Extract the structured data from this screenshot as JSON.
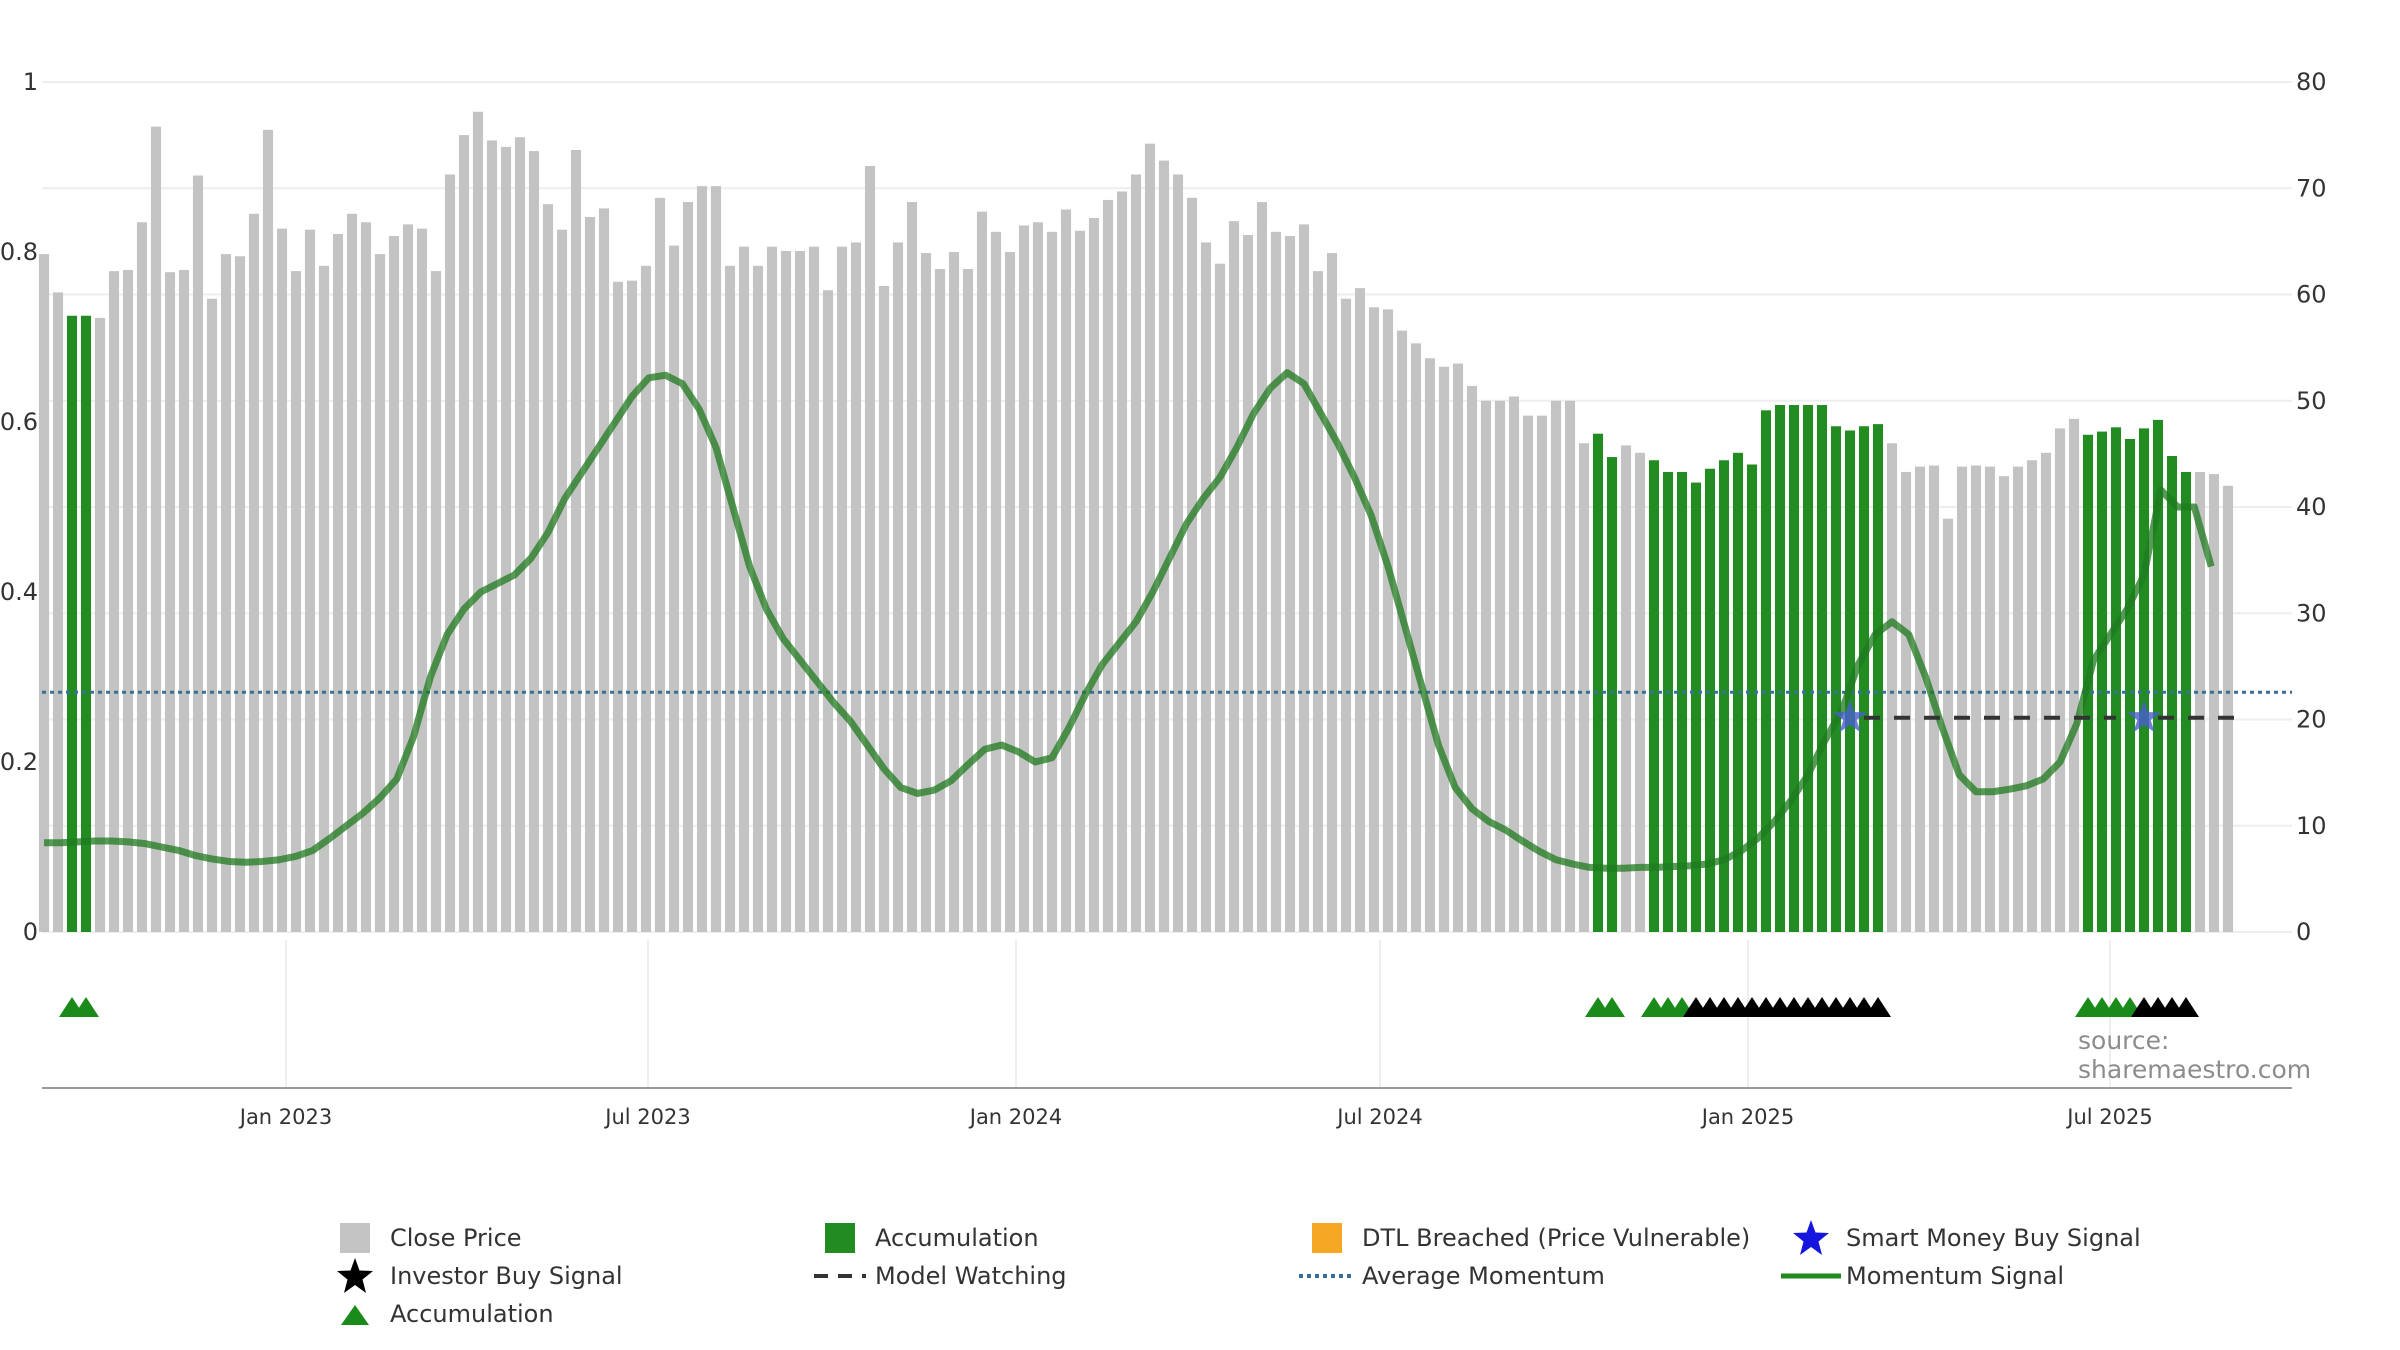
{
  "source_label": "source: sharemaestro.com",
  "colors": {
    "close_price": "#c3c3c3",
    "accumulation": "#228b22",
    "dtl": "#f5a623",
    "smart_money": "#1515e0",
    "investor": "#000000",
    "accum_triangle": "#1a8a1a",
    "model_watching": "#333333",
    "avg_momentum": "#3a6f98",
    "momentum": "#2e8b2e"
  },
  "legend": {
    "close_price": "Close Price",
    "accumulation_bar": "Accumulation",
    "dtl": "DTL Breached (Price Vulnerable)",
    "smart_money": "Smart Money Buy Signal",
    "investor": "Investor Buy Signal",
    "model_watching": "Model Watching",
    "avg_momentum": "Average Momentum",
    "momentum": "Momentum Signal",
    "accumulation_triangle": "Accumulation"
  },
  "chart_data": {
    "type": "bar",
    "x_range": [
      "2022-09-01",
      "2025-09-30"
    ],
    "x_ticks": [
      "Jan 2023",
      "Jul 2023",
      "Jan 2024",
      "Jul 2024",
      "Jan 2025",
      "Jul 2025"
    ],
    "x_tick_dates": [
      "2023-01-01",
      "2023-07-01",
      "2024-01-01",
      "2024-07-01",
      "2025-01-01",
      "2025-07-01"
    ],
    "left_axis": {
      "range": [
        0,
        1
      ],
      "ticks": [
        "0",
        "0.2",
        "0.4",
        "0.6",
        "0.8",
        "1"
      ]
    },
    "right_axis": {
      "range": [
        0,
        80
      ],
      "ticks": [
        "0",
        "10",
        "20",
        "30",
        "40",
        "50",
        "60",
        "70",
        "80"
      ]
    },
    "bar_start_date": "2022-09-02",
    "bar_interval_days": 7,
    "close_price": [
      63.8,
      60.2,
      58,
      58,
      57.8,
      62.2,
      62.3,
      66.8,
      75.8,
      62.1,
      62.3,
      71.2,
      59.6,
      63.8,
      63.6,
      67.6,
      75.5,
      66.2,
      62.2,
      66.1,
      62.7,
      65.7,
      67.6,
      66.8,
      63.8,
      65.5,
      66.6,
      66.2,
      62.2,
      71.3,
      75.0,
      77.2,
      74.5,
      73.9,
      74.8,
      73.5,
      68.5,
      66.1,
      73.6,
      67.3,
      68.1,
      61.2,
      61.3,
      62.7,
      69.1,
      64.6,
      68.7,
      70.2,
      70.2,
      62.7,
      64.5,
      62.7,
      64.5,
      64.1,
      64.1,
      64.5,
      60.4,
      64.5,
      64.9,
      72.1,
      60.8,
      64.9,
      68.7,
      63.9,
      62.4,
      64.0,
      62.4,
      67.8,
      65.9,
      64.0,
      66.5,
      66.8,
      65.9,
      68.0,
      66.0,
      67.2,
      68.9,
      69.7,
      71.3,
      74.2,
      72.6,
      71.3,
      69.1,
      64.9,
      62.9,
      66.9,
      65.6,
      68.7,
      65.9,
      65.5,
      66.6,
      62.2,
      63.9,
      59.6,
      60.6,
      58.8,
      58.6,
      56.6,
      55.4,
      54.0,
      53.2,
      53.5,
      51.4,
      50.0,
      50.0,
      50.4,
      48.6,
      48.6,
      50.0,
      50.0,
      46.0,
      46.9,
      44.7,
      45.8,
      45.1,
      44.4,
      43.3,
      43.3,
      42.3,
      43.6,
      44.4,
      45.1,
      44.0,
      49.1,
      49.6,
      49.6,
      49.6,
      49.6,
      47.6,
      47.2,
      47.6,
      47.8,
      46.0,
      43.3,
      43.8,
      43.9,
      38.9,
      43.8,
      43.9,
      43.8,
      42.9,
      43.8,
      44.4,
      45.1,
      47.4,
      48.3,
      46.8,
      47.1,
      47.5,
      46.4,
      47.4,
      48.2,
      44.8,
      43.3,
      43.3,
      43.1,
      42.0
    ],
    "accumulation_bars": [
      2,
      3,
      111,
      112,
      115,
      116,
      117,
      118,
      119,
      120,
      121,
      122,
      123,
      124,
      125,
      126,
      127,
      128,
      129,
      130,
      131,
      146,
      147,
      148,
      149,
      150,
      151,
      152,
      153
    ],
    "avg_momentum": 0.282,
    "momentum_signal": [
      [
        0,
        0.105
      ],
      [
        1,
        0.105
      ],
      [
        2,
        0.106
      ],
      [
        3,
        0.107
      ],
      [
        4,
        0.107
      ],
      [
        5,
        0.106
      ],
      [
        6,
        0.104
      ],
      [
        7,
        0.1
      ],
      [
        8,
        0.096
      ],
      [
        9,
        0.09
      ],
      [
        10,
        0.086
      ],
      [
        11,
        0.083
      ],
      [
        12,
        0.082
      ],
      [
        13,
        0.083
      ],
      [
        14,
        0.085
      ],
      [
        15,
        0.089
      ],
      [
        16,
        0.096
      ],
      [
        17,
        0.11
      ],
      [
        18,
        0.125
      ],
      [
        19,
        0.14
      ],
      [
        20,
        0.158
      ],
      [
        21,
        0.18
      ],
      [
        22,
        0.23
      ],
      [
        23,
        0.3
      ],
      [
        24,
        0.35
      ],
      [
        25,
        0.38
      ],
      [
        26,
        0.4
      ],
      [
        27,
        0.41
      ],
      [
        28,
        0.42
      ],
      [
        29,
        0.44
      ],
      [
        30,
        0.47
      ],
      [
        31,
        0.51
      ],
      [
        32,
        0.54
      ],
      [
        33,
        0.57
      ],
      [
        34,
        0.6
      ],
      [
        35,
        0.63
      ],
      [
        36,
        0.652
      ],
      [
        37,
        0.655
      ],
      [
        38,
        0.645
      ],
      [
        39,
        0.615
      ],
      [
        40,
        0.57
      ],
      [
        41,
        0.5
      ],
      [
        42,
        0.43
      ],
      [
        43,
        0.38
      ],
      [
        44,
        0.345
      ],
      [
        45,
        0.32
      ],
      [
        46,
        0.295
      ],
      [
        47,
        0.27
      ],
      [
        48,
        0.248
      ],
      [
        49,
        0.22
      ],
      [
        50,
        0.192
      ],
      [
        51,
        0.17
      ],
      [
        52,
        0.163
      ],
      [
        53,
        0.167
      ],
      [
        54,
        0.178
      ],
      [
        55,
        0.197
      ],
      [
        56,
        0.215
      ],
      [
        57,
        0.22
      ],
      [
        58,
        0.212
      ],
      [
        59,
        0.2
      ],
      [
        60,
        0.205
      ],
      [
        61,
        0.24
      ],
      [
        62,
        0.28
      ],
      [
        63,
        0.315
      ],
      [
        64,
        0.34
      ],
      [
        65,
        0.365
      ],
      [
        66,
        0.4
      ],
      [
        67,
        0.44
      ],
      [
        68,
        0.48
      ],
      [
        69,
        0.51
      ],
      [
        70,
        0.535
      ],
      [
        71,
        0.57
      ],
      [
        72,
        0.61
      ],
      [
        73,
        0.64
      ],
      [
        74,
        0.658
      ],
      [
        75,
        0.645
      ],
      [
        76,
        0.61
      ],
      [
        77,
        0.575
      ],
      [
        78,
        0.535
      ],
      [
        79,
        0.49
      ],
      [
        80,
        0.43
      ],
      [
        81,
        0.36
      ],
      [
        82,
        0.29
      ],
      [
        83,
        0.22
      ],
      [
        84,
        0.17
      ],
      [
        85,
        0.145
      ],
      [
        86,
        0.13
      ],
      [
        87,
        0.12
      ],
      [
        88,
        0.107
      ],
      [
        89,
        0.095
      ],
      [
        90,
        0.085
      ],
      [
        91,
        0.08
      ],
      [
        92,
        0.076
      ],
      [
        93,
        0.075
      ],
      [
        94,
        0.075
      ],
      [
        95,
        0.076
      ],
      [
        96,
        0.076
      ],
      [
        97,
        0.077
      ],
      [
        98,
        0.078
      ],
      [
        99,
        0.08
      ],
      [
        100,
        0.085
      ],
      [
        101,
        0.095
      ],
      [
        102,
        0.11
      ],
      [
        103,
        0.13
      ],
      [
        104,
        0.155
      ],
      [
        105,
        0.185
      ],
      [
        106,
        0.225
      ],
      [
        107,
        0.26
      ],
      [
        108,
        0.315
      ],
      [
        109,
        0.35
      ],
      [
        110,
        0.365
      ],
      [
        111,
        0.35
      ],
      [
        112,
        0.3
      ],
      [
        113,
        0.24
      ],
      [
        114,
        0.185
      ],
      [
        115,
        0.165
      ],
      [
        116,
        0.165
      ],
      [
        117,
        0.168
      ],
      [
        118,
        0.172
      ],
      [
        119,
        0.18
      ],
      [
        120,
        0.2
      ],
      [
        121,
        0.245
      ],
      [
        122,
        0.32
      ],
      [
        123,
        0.35
      ],
      [
        124,
        0.38
      ],
      [
        125,
        0.42
      ],
      [
        126,
        0.52
      ],
      [
        127,
        0.5
      ],
      [
        128,
        0.5
      ],
      [
        129,
        0.43
      ]
    ],
    "momentum_x_scale": 1.2,
    "smart_money_signals": [
      [
        129,
        0.252
      ],
      [
        150,
        0.252
      ]
    ],
    "model_watching": {
      "y": 0.252,
      "segments": [
        [
          130,
          148
        ],
        [
          151,
          157
        ]
      ]
    },
    "accumulation_triangles": [
      2,
      3,
      111,
      112,
      115,
      116,
      117
    ],
    "investor_triangles": [
      118,
      119,
      120,
      121,
      122,
      123,
      124,
      125,
      126,
      127,
      128,
      129,
      130,
      131
    ],
    "accumulation_triangles_2": [
      146,
      147,
      148,
      149
    ],
    "investor_triangles_2": [
      150,
      151,
      152,
      153
    ]
  }
}
